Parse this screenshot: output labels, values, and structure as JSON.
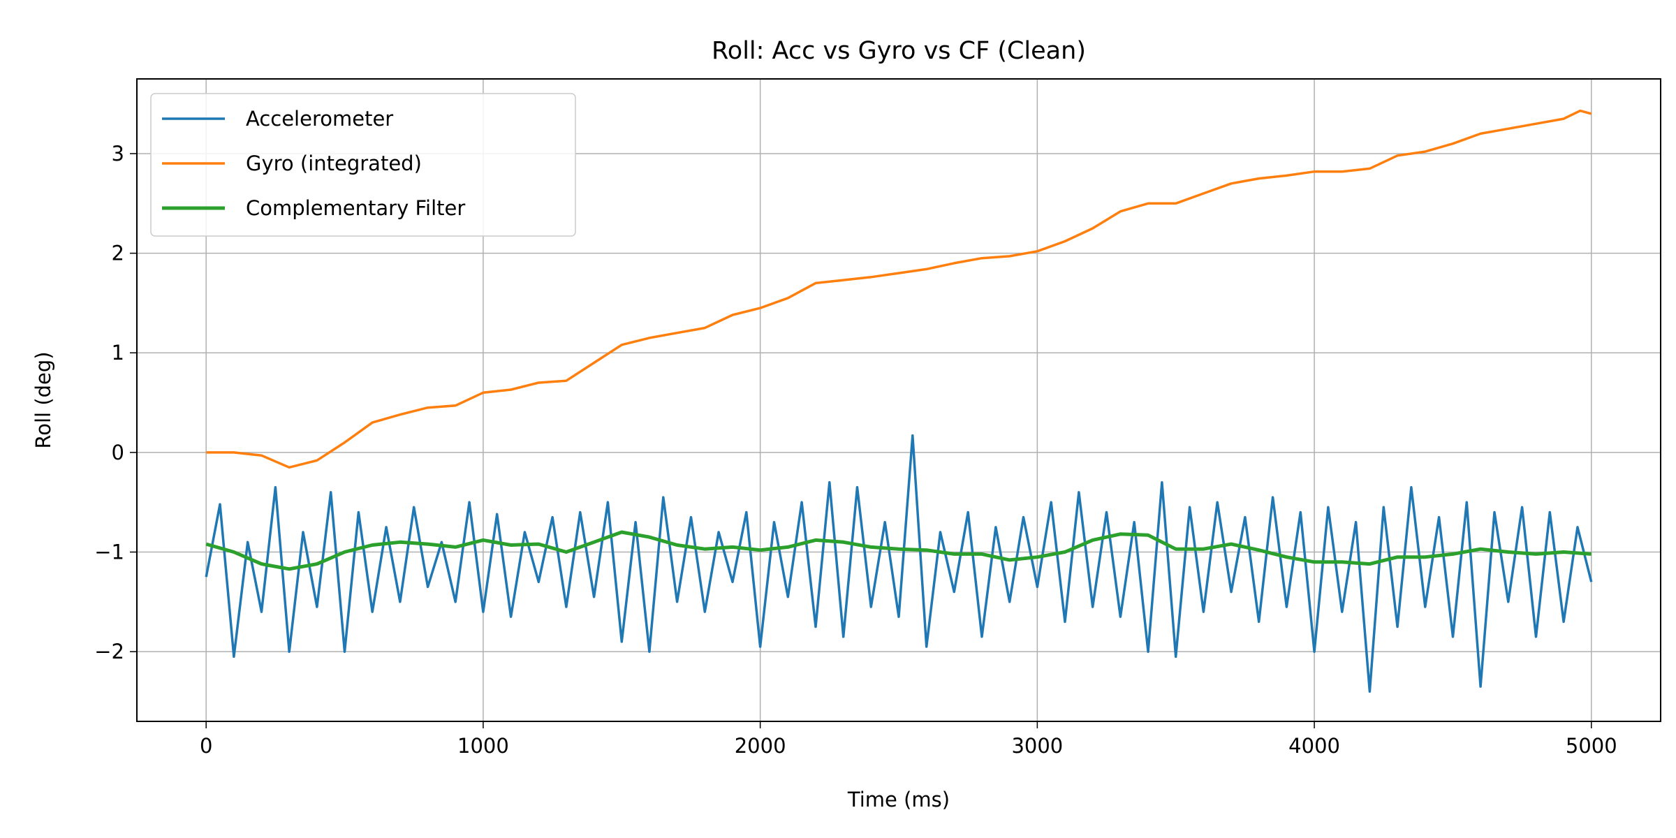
{
  "chart_data": {
    "type": "line",
    "title": "Roll:  Acc vs Gyro vs CF (Clean)",
    "xlabel": "Time (ms)",
    "ylabel": "Roll (deg)",
    "xlim": [
      -250,
      5250
    ],
    "ylim": [
      -2.7,
      3.75
    ],
    "xticks": [
      0,
      1000,
      2000,
      3000,
      4000,
      5000
    ],
    "xtick_labels": [
      "0",
      "1000",
      "2000",
      "3000",
      "4000",
      "5000"
    ],
    "yticks": [
      -2,
      -1,
      0,
      1,
      2,
      3
    ],
    "ytick_labels": [
      "−2",
      "−1",
      "0",
      "1",
      "2",
      "3"
    ],
    "grid": true,
    "legend_placement": "top-left",
    "series": [
      {
        "name": "Accelerometer",
        "color": "#1f77b4",
        "x": [
          0,
          50,
          100,
          150,
          200,
          250,
          300,
          350,
          400,
          450,
          500,
          550,
          600,
          650,
          700,
          750,
          800,
          850,
          900,
          950,
          1000,
          1050,
          1100,
          1150,
          1200,
          1250,
          1300,
          1350,
          1400,
          1450,
          1500,
          1550,
          1600,
          1650,
          1700,
          1750,
          1800,
          1850,
          1900,
          1950,
          2000,
          2050,
          2100,
          2150,
          2200,
          2250,
          2300,
          2350,
          2400,
          2450,
          2500,
          2550,
          2600,
          2650,
          2700,
          2750,
          2800,
          2850,
          2900,
          2950,
          3000,
          3050,
          3100,
          3150,
          3200,
          3250,
          3300,
          3350,
          3400,
          3450,
          3500,
          3550,
          3600,
          3650,
          3700,
          3750,
          3800,
          3850,
          3900,
          3950,
          4000,
          4050,
          4100,
          4150,
          4200,
          4250,
          4300,
          4350,
          4400,
          4450,
          4500,
          4550,
          4600,
          4650,
          4700,
          4750,
          4800,
          4850,
          4900,
          4950,
          5000
        ],
        "y": [
          -1.25,
          -0.52,
          -2.05,
          -0.9,
          -1.6,
          -0.35,
          -2.0,
          -0.8,
          -1.55,
          -0.4,
          -2.0,
          -0.6,
          -1.6,
          -0.75,
          -1.5,
          -0.55,
          -1.35,
          -0.9,
          -1.5,
          -0.5,
          -1.6,
          -0.62,
          -1.65,
          -0.8,
          -1.3,
          -0.65,
          -1.55,
          -0.6,
          -1.45,
          -0.5,
          -1.9,
          -0.7,
          -2.0,
          -0.45,
          -1.5,
          -0.65,
          -1.6,
          -0.8,
          -1.3,
          -0.6,
          -1.95,
          -0.7,
          -1.45,
          -0.5,
          -1.75,
          -0.3,
          -1.85,
          -0.35,
          -1.55,
          -0.7,
          -1.65,
          0.17,
          -1.95,
          -0.8,
          -1.4,
          -0.6,
          -1.85,
          -0.75,
          -1.5,
          -0.65,
          -1.35,
          -0.5,
          -1.7,
          -0.4,
          -1.55,
          -0.6,
          -1.65,
          -0.7,
          -2.0,
          -0.3,
          -2.05,
          -0.55,
          -1.6,
          -0.5,
          -1.4,
          -0.65,
          -1.7,
          -0.45,
          -1.55,
          -0.6,
          -2.0,
          -0.55,
          -1.6,
          -0.7,
          -2.4,
          -0.55,
          -1.75,
          -0.35,
          -1.55,
          -0.65,
          -1.85,
          -0.5,
          -2.35,
          -0.6,
          -1.5,
          -0.55,
          -1.85,
          -0.6,
          -1.7,
          -0.75,
          -1.3
        ]
      },
      {
        "name": "Gyro (integrated)",
        "color": "#ff7f0e",
        "x": [
          0,
          100,
          200,
          300,
          400,
          500,
          600,
          700,
          800,
          900,
          1000,
          1100,
          1200,
          1300,
          1400,
          1500,
          1600,
          1700,
          1800,
          1900,
          2000,
          2100,
          2200,
          2300,
          2400,
          2500,
          2600,
          2700,
          2800,
          2900,
          3000,
          3100,
          3200,
          3300,
          3400,
          3500,
          3600,
          3700,
          3800,
          3900,
          4000,
          4100,
          4200,
          4300,
          4400,
          4500,
          4600,
          4700,
          4800,
          4900,
          4960,
          5000
        ],
        "y": [
          0.0,
          0.0,
          -0.03,
          -0.15,
          -0.08,
          0.1,
          0.3,
          0.38,
          0.45,
          0.47,
          0.6,
          0.63,
          0.7,
          0.72,
          0.9,
          1.08,
          1.15,
          1.2,
          1.25,
          1.38,
          1.45,
          1.55,
          1.7,
          1.73,
          1.76,
          1.8,
          1.84,
          1.9,
          1.95,
          1.97,
          2.02,
          2.12,
          2.25,
          2.42,
          2.5,
          2.5,
          2.6,
          2.7,
          2.75,
          2.78,
          2.82,
          2.82,
          2.85,
          2.98,
          3.02,
          3.1,
          3.2,
          3.25,
          3.3,
          3.35,
          3.43,
          3.4
        ]
      },
      {
        "name": "Complementary Filter",
        "color": "#2ca02c",
        "x": [
          0,
          100,
          200,
          300,
          400,
          500,
          600,
          700,
          800,
          900,
          1000,
          1100,
          1200,
          1300,
          1400,
          1500,
          1600,
          1700,
          1800,
          1900,
          2000,
          2100,
          2200,
          2300,
          2400,
          2500,
          2600,
          2700,
          2800,
          2900,
          3000,
          3100,
          3200,
          3300,
          3400,
          3500,
          3600,
          3700,
          3800,
          3900,
          4000,
          4100,
          4200,
          4300,
          4400,
          4500,
          4600,
          4700,
          4800,
          4900,
          5000
        ],
        "y": [
          -0.92,
          -1.0,
          -1.12,
          -1.17,
          -1.12,
          -1.0,
          -0.93,
          -0.9,
          -0.92,
          -0.95,
          -0.88,
          -0.93,
          -0.92,
          -1.0,
          -0.9,
          -0.8,
          -0.85,
          -0.93,
          -0.97,
          -0.95,
          -0.98,
          -0.95,
          -0.88,
          -0.9,
          -0.95,
          -0.97,
          -0.98,
          -1.02,
          -1.02,
          -1.08,
          -1.05,
          -1.0,
          -0.88,
          -0.82,
          -0.83,
          -0.97,
          -0.97,
          -0.92,
          -0.98,
          -1.05,
          -1.1,
          -1.1,
          -1.12,
          -1.05,
          -1.05,
          -1.02,
          -0.97,
          -1.0,
          -1.02,
          -1.0,
          -1.02
        ]
      }
    ]
  }
}
